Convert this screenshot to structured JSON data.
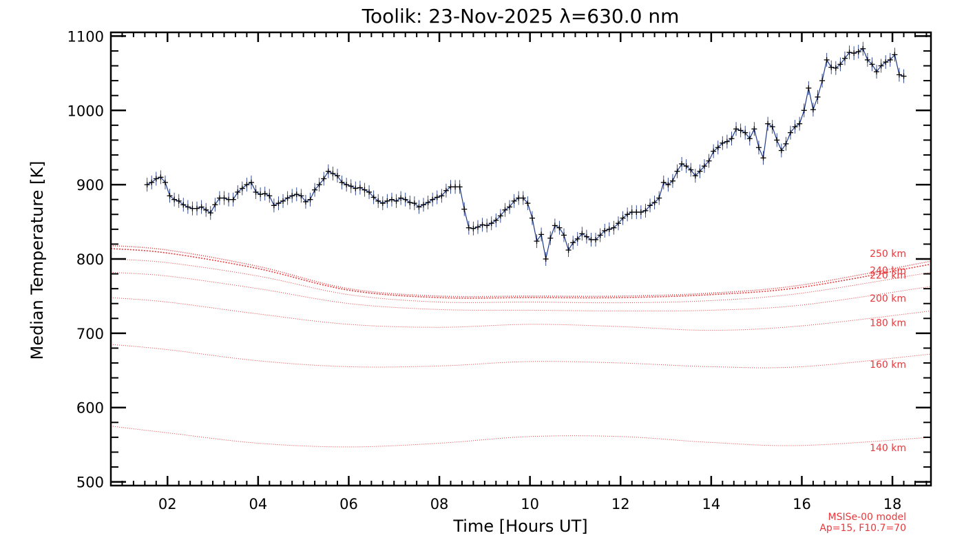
{
  "chart_data": {
    "type": "line",
    "title": "Toolik: 23-Nov-2025 λ=630.0 nm",
    "xlabel": "Time [Hours UT]",
    "ylabel": "Median Temperature [K]",
    "xlim": [
      0.75,
      18.85
    ],
    "ylim": [
      495,
      1105
    ],
    "x_ticks": [
      2,
      4,
      6,
      8,
      10,
      12,
      14,
      16,
      18
    ],
    "x_tick_labels": [
      "02",
      "04",
      "06",
      "08",
      "10",
      "12",
      "14",
      "16",
      "18"
    ],
    "y_ticks": [
      500,
      600,
      700,
      800,
      900,
      1000,
      1100
    ],
    "y_tick_labels": [
      "500",
      "600",
      "700",
      "800",
      "900",
      "1000",
      "1100"
    ],
    "model_note": [
      "MSISe-00 model",
      "Ap=15, F10.7=70"
    ],
    "colors": {
      "data": "#1f3a8a",
      "marker": "#000000",
      "model": "#e8383b",
      "axis": "#000000"
    },
    "series": [
      {
        "name": "Median Temperature",
        "points": [
          [
            1.55,
            900
          ],
          [
            1.65,
            903
          ],
          [
            1.75,
            908
          ],
          [
            1.85,
            910
          ],
          [
            1.95,
            903
          ],
          [
            2.05,
            885
          ],
          [
            2.15,
            880
          ],
          [
            2.25,
            878
          ],
          [
            2.35,
            873
          ],
          [
            2.45,
            870
          ],
          [
            2.55,
            868
          ],
          [
            2.65,
            868
          ],
          [
            2.75,
            870
          ],
          [
            2.85,
            866
          ],
          [
            2.95,
            862
          ],
          [
            3.05,
            873
          ],
          [
            3.15,
            882
          ],
          [
            3.25,
            882
          ],
          [
            3.35,
            880
          ],
          [
            3.45,
            880
          ],
          [
            3.55,
            890
          ],
          [
            3.65,
            895
          ],
          [
            3.75,
            900
          ],
          [
            3.85,
            903
          ],
          [
            3.95,
            890
          ],
          [
            4.05,
            887
          ],
          [
            4.15,
            888
          ],
          [
            4.25,
            885
          ],
          [
            4.35,
            872
          ],
          [
            4.45,
            875
          ],
          [
            4.55,
            878
          ],
          [
            4.65,
            882
          ],
          [
            4.75,
            885
          ],
          [
            4.85,
            887
          ],
          [
            4.95,
            885
          ],
          [
            5.05,
            877
          ],
          [
            5.15,
            880
          ],
          [
            5.25,
            893
          ],
          [
            5.35,
            900
          ],
          [
            5.45,
            908
          ],
          [
            5.55,
            918
          ],
          [
            5.65,
            915
          ],
          [
            5.75,
            912
          ],
          [
            5.85,
            903
          ],
          [
            5.95,
            900
          ],
          [
            6.05,
            898
          ],
          [
            6.15,
            895
          ],
          [
            6.25,
            896
          ],
          [
            6.35,
            893
          ],
          [
            6.45,
            890
          ],
          [
            6.55,
            883
          ],
          [
            6.65,
            878
          ],
          [
            6.75,
            875
          ],
          [
            6.85,
            878
          ],
          [
            6.95,
            880
          ],
          [
            7.05,
            878
          ],
          [
            7.15,
            882
          ],
          [
            7.25,
            880
          ],
          [
            7.35,
            876
          ],
          [
            7.45,
            875
          ],
          [
            7.55,
            870
          ],
          [
            7.65,
            873
          ],
          [
            7.75,
            876
          ],
          [
            7.85,
            880
          ],
          [
            7.95,
            883
          ],
          [
            8.05,
            885
          ],
          [
            8.15,
            892
          ],
          [
            8.25,
            897
          ],
          [
            8.35,
            897
          ],
          [
            8.45,
            897
          ],
          [
            8.55,
            867
          ],
          [
            8.65,
            842
          ],
          [
            8.75,
            841
          ],
          [
            8.85,
            843
          ],
          [
            8.95,
            846
          ],
          [
            9.05,
            845
          ],
          [
            9.15,
            848
          ],
          [
            9.25,
            852
          ],
          [
            9.35,
            858
          ],
          [
            9.45,
            866
          ],
          [
            9.55,
            870
          ],
          [
            9.65,
            878
          ],
          [
            9.75,
            882
          ],
          [
            9.85,
            882
          ],
          [
            9.95,
            875
          ],
          [
            10.05,
            855
          ],
          [
            10.15,
            824
          ],
          [
            10.25,
            833
          ],
          [
            10.35,
            800
          ],
          [
            10.45,
            828
          ],
          [
            10.55,
            845
          ],
          [
            10.65,
            842
          ],
          [
            10.75,
            832
          ],
          [
            10.85,
            812
          ],
          [
            10.95,
            822
          ],
          [
            11.05,
            827
          ],
          [
            11.15,
            834
          ],
          [
            11.25,
            830
          ],
          [
            11.35,
            826
          ],
          [
            11.45,
            826
          ],
          [
            11.55,
            832
          ],
          [
            11.65,
            838
          ],
          [
            11.75,
            840
          ],
          [
            11.85,
            842
          ],
          [
            11.95,
            848
          ],
          [
            12.05,
            855
          ],
          [
            12.15,
            860
          ],
          [
            12.25,
            863
          ],
          [
            12.35,
            863
          ],
          [
            12.45,
            863
          ],
          [
            12.55,
            865
          ],
          [
            12.65,
            872
          ],
          [
            12.75,
            876
          ],
          [
            12.85,
            882
          ],
          [
            12.95,
            903
          ],
          [
            13.05,
            900
          ],
          [
            13.15,
            905
          ],
          [
            13.25,
            918
          ],
          [
            13.35,
            928
          ],
          [
            13.45,
            925
          ],
          [
            13.55,
            920
          ],
          [
            13.65,
            912
          ],
          [
            13.75,
            918
          ],
          [
            13.85,
            925
          ],
          [
            13.95,
            932
          ],
          [
            14.05,
            945
          ],
          [
            14.15,
            950
          ],
          [
            14.25,
            956
          ],
          [
            14.35,
            958
          ],
          [
            14.45,
            962
          ],
          [
            14.55,
            975
          ],
          [
            14.65,
            973
          ],
          [
            14.75,
            970
          ],
          [
            14.85,
            962
          ],
          [
            14.95,
            975
          ],
          [
            15.05,
            950
          ],
          [
            15.15,
            936
          ],
          [
            15.25,
            982
          ],
          [
            15.35,
            978
          ],
          [
            15.45,
            960
          ],
          [
            15.55,
            946
          ],
          [
            15.65,
            955
          ],
          [
            15.75,
            970
          ],
          [
            15.85,
            978
          ],
          [
            15.95,
            982
          ],
          [
            16.05,
            1000
          ],
          [
            16.15,
            1030
          ],
          [
            16.25,
            1001
          ],
          [
            16.35,
            1018
          ],
          [
            16.45,
            1040
          ],
          [
            16.55,
            1068
          ],
          [
            16.65,
            1058
          ],
          [
            16.75,
            1057
          ],
          [
            16.85,
            1062
          ],
          [
            16.95,
            1070
          ],
          [
            17.05,
            1078
          ],
          [
            17.15,
            1077
          ],
          [
            17.25,
            1079
          ],
          [
            17.35,
            1083
          ],
          [
            17.45,
            1068
          ],
          [
            17.55,
            1062
          ],
          [
            17.65,
            1052
          ],
          [
            17.75,
            1060
          ],
          [
            17.85,
            1065
          ],
          [
            17.95,
            1068
          ],
          [
            18.05,
            1075
          ],
          [
            18.15,
            1048
          ],
          [
            18.25,
            1046
          ]
        ]
      }
    ],
    "model_curves": [
      {
        "label": "250 km",
        "points": [
          [
            0.75,
            818
          ],
          [
            2,
            812
          ],
          [
            4,
            790
          ],
          [
            6,
            760
          ],
          [
            8,
            750
          ],
          [
            10,
            750
          ],
          [
            12,
            750
          ],
          [
            14,
            754
          ],
          [
            16,
            765
          ],
          [
            18.85,
            797
          ]
        ]
      },
      {
        "label": "240 km",
        "points": [
          [
            0.75,
            814
          ],
          [
            2,
            808
          ],
          [
            4,
            787
          ],
          [
            6,
            758
          ],
          [
            8,
            748
          ],
          [
            10,
            748
          ],
          [
            12,
            748
          ],
          [
            14,
            752
          ],
          [
            16,
            762
          ],
          [
            18.85,
            793
          ]
        ]
      },
      {
        "label": "220 km",
        "points": [
          [
            0.75,
            800
          ],
          [
            2,
            795
          ],
          [
            4,
            777
          ],
          [
            6,
            752
          ],
          [
            8,
            742
          ],
          [
            10,
            742
          ],
          [
            12,
            741
          ],
          [
            14,
            744
          ],
          [
            16,
            754
          ],
          [
            18.85,
            782
          ]
        ]
      },
      {
        "label": "200 km",
        "points": [
          [
            0.75,
            782
          ],
          [
            2,
            777
          ],
          [
            4,
            760
          ],
          [
            6,
            740
          ],
          [
            8,
            732
          ],
          [
            10,
            731
          ],
          [
            12,
            730
          ],
          [
            14,
            731
          ],
          [
            16,
            738
          ],
          [
            18.85,
            763
          ]
        ]
      },
      {
        "label": "180 km",
        "points": [
          [
            0.75,
            748
          ],
          [
            2,
            742
          ],
          [
            4,
            726
          ],
          [
            6,
            712
          ],
          [
            8,
            708
          ],
          [
            10,
            712
          ],
          [
            12,
            709
          ],
          [
            14,
            704
          ],
          [
            16,
            710
          ],
          [
            18.85,
            730
          ]
        ]
      },
      {
        "label": "160 km",
        "points": [
          [
            0.75,
            685
          ],
          [
            2,
            678
          ],
          [
            4,
            663
          ],
          [
            6,
            655
          ],
          [
            8,
            656
          ],
          [
            10,
            662
          ],
          [
            12,
            660
          ],
          [
            14,
            655
          ],
          [
            16,
            655
          ],
          [
            18.85,
            672
          ]
        ]
      },
      {
        "label": "140 km",
        "points": [
          [
            0.75,
            575
          ],
          [
            2,
            566
          ],
          [
            4,
            552
          ],
          [
            6,
            547
          ],
          [
            8,
            552
          ],
          [
            10,
            561
          ],
          [
            12,
            561
          ],
          [
            14,
            553
          ],
          [
            16,
            549
          ],
          [
            18.85,
            560
          ]
        ]
      }
    ]
  }
}
